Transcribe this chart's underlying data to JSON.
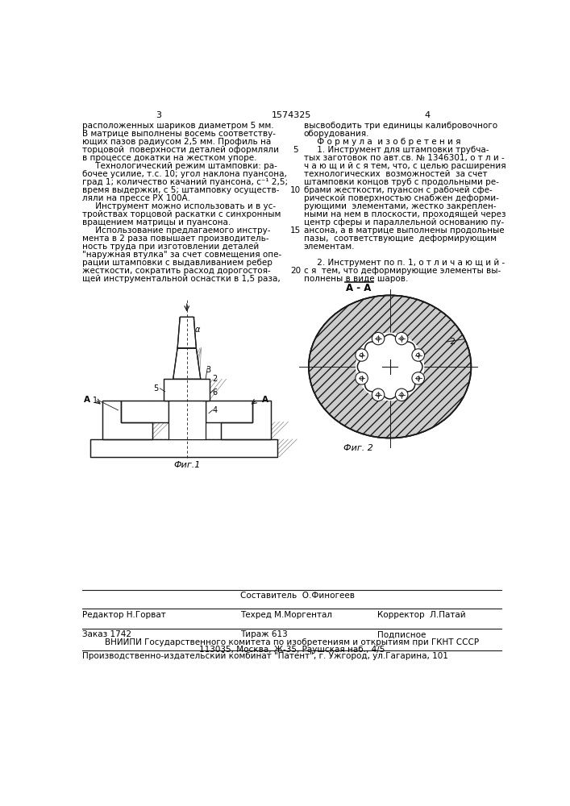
{
  "page_color": "#ffffff",
  "page_num_left": "3",
  "page_num_center": "1574325",
  "page_num_right": "4",
  "col_left_lines": [
    "расположенных шариков диаметром 5 мм.",
    "В матрице выполнены восемь соответству-",
    "ющих пазов радиусом 2,5 мм. Профиль на",
    "торцовой  поверхности деталей оформляли",
    "в процессе докатки на жестком упоре.",
    "     Технологический режим штамповки: ра-",
    "бочее усилие, т.с. 10; угол наклона пуансона,",
    "град 1; количество качаний пуансона, с⁻¹ 2,5;",
    "время выдержки, с 5; штамповку осуществ-",
    "ляли на прессе РХ 100А.",
    "     Инструмент можно использовать и в ус-",
    "тройствах торцовой раскатки с синхронным",
    "вращением матрицы и пуансона.",
    "     Использование предлагаемого инстру-",
    "мента в 2 раза повышает производитель-",
    "ность труда при изготовлении деталей",
    "\"наружная втулка\" за счет совмещения опе-",
    "рации штамповки с выдавливанием ребер",
    "жесткости, сократить расход дорогостоя-",
    "щей инструментальной оснастки в 1,5 раза,"
  ],
  "col_right_lines": [
    "высвободить три единицы калибровочного",
    "оборудования.",
    "     Ф о р м у л а  и з о б р е т е н и я",
    "     1. Инструмент для штамповки трубча-",
    "тых заготовок по авт.св. № 1346301, о т л и -",
    "ч а ю щ и й с я тем, что, с целью расширения",
    "технологических  возможностей  за счет",
    "штамповки концов труб с продольными ре-",
    "брами жесткости, пуансон с рабочей сфе-",
    "рической поверхностью снабжен деформи-",
    "рующими  элементами, жестко закреплен-",
    "ными на нем в плоскости, проходящей через",
    "центр сферы и параллельной основанию пу-",
    "ансона, а в матрице выполнены продольные",
    "пазы,  соответствующие  деформирующим",
    "элементам.",
    "",
    "     2. Инструмент по п. 1, о т л и ч а ю щ и й -",
    "с я  тем, что деформирующие элементы вы-",
    "полнены в виде шаров."
  ],
  "line_num_map": {
    "3": "5",
    "8": "10",
    "13": "15",
    "18": "20"
  },
  "fig1_label": "Фиг.1",
  "fig2_label": "Фиг. 2",
  "fig2_section": "А - А",
  "sestavitel_label": "Составитель  О.Финогеев",
  "editor_label": "Редактор Н.Горват",
  "techred_label": "Техред М.Моргентал",
  "corrector_label": "Корректор  Л.Патай",
  "order_label": "Заказ 1742",
  "tirazh_label": "Тираж 613",
  "podpisnoe_label": "Подписное",
  "vniiipi_line1": "ВНИИПИ Государственного комитета по изобретениям и открытиям при ГКНТ СССР",
  "vniiipi_line2": "113035, Москва, Ж-35, Раушская наб., 4/5",
  "publisher_line": "Производственно-издательский комбинат \"Патент\", г. Ужгород, ул.Гагарина, 101",
  "hatch_color": "#888888",
  "line_color": "#1a1a1a"
}
